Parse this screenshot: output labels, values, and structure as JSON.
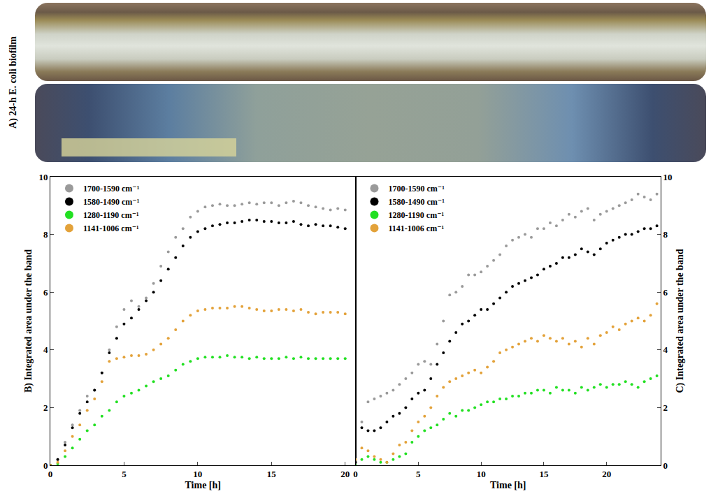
{
  "photo": {
    "label": "A) 24-h E. coli biofilm"
  },
  "chart_data": [
    {
      "type": "scatter",
      "marker": "dot",
      "legend": "upper left",
      "grid": false,
      "y_label": "B) Integrated area under the band",
      "x_label": "Time [h]",
      "xlim": [
        0,
        20.7
      ],
      "xticks": [
        0,
        5,
        10,
        15,
        20
      ],
      "ylim": [
        0,
        10
      ],
      "yticks": [
        0,
        2,
        4,
        6,
        8,
        10
      ],
      "x": [
        0,
        0.5,
        1,
        1.5,
        2,
        2.5,
        3,
        3.5,
        4,
        4.5,
        5,
        5.5,
        6,
        6.5,
        7,
        7.5,
        8,
        8.5,
        9,
        9.5,
        10,
        10.5,
        11,
        11.5,
        12,
        12.5,
        13,
        13.5,
        14,
        14.5,
        15,
        15.5,
        16,
        16.5,
        17,
        17.5,
        18,
        18.5,
        19,
        19.5,
        20
      ],
      "series": [
        {
          "name": "1700-1590 cm⁻¹",
          "color": "#9a9a9a",
          "values": [
            0,
            0.2,
            0.8,
            1.4,
            1.9,
            2.4,
            2.6,
            3.2,
            4.0,
            4.8,
            5.4,
            5.7,
            5.5,
            5.8,
            6.3,
            6.9,
            7.4,
            7.9,
            8.2,
            8.6,
            8.8,
            8.95,
            9.0,
            9.05,
            9.0,
            9.0,
            9.05,
            9.1,
            9.05,
            9.1,
            9.1,
            9.0,
            9.1,
            9.15,
            9.1,
            9.0,
            8.95,
            8.9,
            8.85,
            8.9,
            8.85
          ]
        },
        {
          "name": "1580-1490 cm⁻¹",
          "color": "#000000",
          "values": [
            0,
            0.2,
            0.7,
            1.3,
            1.8,
            2.2,
            2.6,
            3.2,
            3.9,
            4.4,
            4.9,
            5.1,
            5.4,
            5.7,
            6.0,
            6.4,
            6.8,
            7.2,
            7.6,
            7.9,
            8.1,
            8.2,
            8.3,
            8.35,
            8.4,
            8.4,
            8.45,
            8.5,
            8.5,
            8.45,
            8.45,
            8.4,
            8.4,
            8.45,
            8.35,
            8.3,
            8.35,
            8.3,
            8.3,
            8.25,
            8.2
          ]
        },
        {
          "name": "1280-1190 cm⁻¹",
          "color": "#22e022",
          "values": [
            0,
            0.05,
            0.3,
            0.6,
            0.9,
            1.2,
            1.4,
            1.7,
            1.9,
            2.2,
            2.4,
            2.5,
            2.6,
            2.75,
            2.9,
            3.0,
            3.1,
            3.3,
            3.5,
            3.6,
            3.7,
            3.75,
            3.75,
            3.75,
            3.8,
            3.75,
            3.75,
            3.7,
            3.75,
            3.7,
            3.7,
            3.7,
            3.75,
            3.7,
            3.75,
            3.7,
            3.7,
            3.7,
            3.7,
            3.7,
            3.7
          ]
        },
        {
          "name": "1141-1006 cm⁻¹",
          "color": "#e3a23a",
          "values": [
            0,
            0.1,
            0.5,
            1.0,
            1.4,
            1.9,
            2.3,
            2.9,
            3.6,
            3.7,
            3.75,
            3.8,
            3.8,
            3.85,
            4.0,
            4.2,
            4.4,
            4.7,
            5.0,
            5.2,
            5.35,
            5.4,
            5.45,
            5.45,
            5.45,
            5.5,
            5.5,
            5.45,
            5.4,
            5.35,
            5.35,
            5.4,
            5.4,
            5.35,
            5.4,
            5.3,
            5.25,
            5.3,
            5.3,
            5.3,
            5.25
          ]
        }
      ]
    },
    {
      "type": "scatter",
      "marker": "dot",
      "legend": "upper left",
      "grid": false,
      "y_label": "C) Integrated area under the band",
      "x_label": "Time [h]",
      "xlim": [
        0,
        24.3
      ],
      "xticks": [
        0,
        5,
        10,
        15,
        20
      ],
      "ylim": [
        0,
        10
      ],
      "yticks": [
        0,
        2,
        4,
        6,
        8,
        10
      ],
      "x": [
        0,
        0.5,
        1,
        1.5,
        2,
        2.5,
        3,
        3.5,
        4,
        4.5,
        5,
        5.5,
        6,
        6.5,
        7,
        7.5,
        8,
        8.5,
        9,
        9.5,
        10,
        10.5,
        11,
        11.5,
        12,
        12.5,
        13,
        13.5,
        14,
        14.5,
        15,
        15.5,
        16,
        16.5,
        17,
        17.5,
        18,
        18.5,
        19,
        19.5,
        20,
        20.5,
        21,
        21.5,
        22,
        22.5,
        23,
        23.5,
        24
      ],
      "series": [
        {
          "name": "1700-1590 cm⁻¹",
          "color": "#9a9a9a",
          "values": [
            0.1,
            1.5,
            2.2,
            2.3,
            2.4,
            2.5,
            2.6,
            2.8,
            3.0,
            3.2,
            3.5,
            3.6,
            3.5,
            4.2,
            5.0,
            5.9,
            6.0,
            6.2,
            6.6,
            6.6,
            6.7,
            6.9,
            7.1,
            7.3,
            7.6,
            7.8,
            7.9,
            8.0,
            7.9,
            8.2,
            8.2,
            8.4,
            8.3,
            8.5,
            8.7,
            8.6,
            8.8,
            8.9,
            8.5,
            8.7,
            8.8,
            8.9,
            9.0,
            9.1,
            9.2,
            9.4,
            9.3,
            9.2,
            9.4
          ]
        },
        {
          "name": "1580-1490 cm⁻¹",
          "color": "#000000",
          "values": [
            0.1,
            1.3,
            1.2,
            1.2,
            1.3,
            1.5,
            1.7,
            1.8,
            2.0,
            2.3,
            2.5,
            2.6,
            3.0,
            3.5,
            3.9,
            4.3,
            4.6,
            4.9,
            5.0,
            5.2,
            5.4,
            5.4,
            5.6,
            5.8,
            6.0,
            6.2,
            6.3,
            6.4,
            6.5,
            6.6,
            6.8,
            6.9,
            7.0,
            7.2,
            7.2,
            7.3,
            7.5,
            7.4,
            7.3,
            7.5,
            7.7,
            7.8,
            7.9,
            8.0,
            8.0,
            8.1,
            8.2,
            8.2,
            8.3
          ]
        },
        {
          "name": "1280-1190 cm⁻¹",
          "color": "#22e022",
          "values": [
            0,
            0.2,
            0.3,
            0.2,
            0.1,
            0.1,
            0.2,
            0.3,
            0.4,
            0.8,
            1.0,
            1.2,
            1.3,
            1.4,
            1.6,
            1.8,
            1.7,
            1.9,
            1.9,
            2.0,
            2.1,
            2.2,
            2.2,
            2.3,
            2.3,
            2.4,
            2.4,
            2.5,
            2.5,
            2.6,
            2.6,
            2.5,
            2.7,
            2.6,
            2.6,
            2.5,
            2.7,
            2.6,
            2.7,
            2.8,
            2.7,
            2.8,
            2.8,
            2.9,
            2.8,
            2.7,
            2.9,
            3.0,
            3.1
          ]
        },
        {
          "name": "1141-1006 cm⁻¹",
          "color": "#e3a23a",
          "values": [
            0.2,
            0.6,
            0.5,
            0.3,
            0.2,
            0.1,
            0.4,
            0.7,
            0.8,
            1.2,
            1.5,
            1.7,
            2.0,
            2.4,
            2.7,
            2.9,
            3.0,
            3.1,
            3.2,
            3.3,
            3.2,
            3.4,
            3.6,
            3.9,
            4.0,
            4.1,
            4.2,
            4.3,
            4.4,
            4.3,
            4.5,
            4.4,
            4.3,
            4.4,
            4.2,
            4.3,
            4.1,
            4.4,
            4.2,
            4.5,
            4.6,
            4.8,
            4.7,
            4.9,
            5.0,
            5.1,
            5.0,
            5.2,
            5.6
          ]
        }
      ]
    }
  ]
}
